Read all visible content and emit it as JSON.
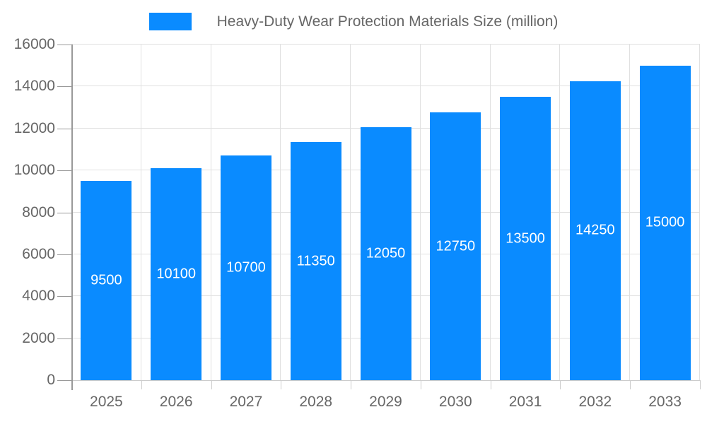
{
  "chart_data": {
    "type": "bar",
    "title": "Heavy-Duty Wear Protection Materials Size (million)",
    "categories": [
      "2025",
      "2026",
      "2027",
      "2028",
      "2029",
      "2030",
      "2031",
      "2032",
      "2033"
    ],
    "values": [
      9500,
      10100,
      10700,
      11350,
      12050,
      12750,
      13500,
      14250,
      15000
    ],
    "xlabel": "",
    "ylabel": "",
    "ylim": [
      0,
      16000
    ],
    "yticks": [
      0,
      2000,
      4000,
      6000,
      8000,
      10000,
      12000,
      14000,
      16000
    ],
    "grid": true,
    "legend_position": "top",
    "bar_color": "#0A8BFF",
    "bar_label_color": "#FFFFFF",
    "grid_color": "#E0E0E0",
    "axis_line_color": "#999999",
    "baseline_color": "#CCCCCC",
    "tick_text_color": "#666666",
    "background_color": "#FFFFFF"
  },
  "legend": {
    "label": "Heavy-Duty Wear Protection Materials Size (million)"
  }
}
